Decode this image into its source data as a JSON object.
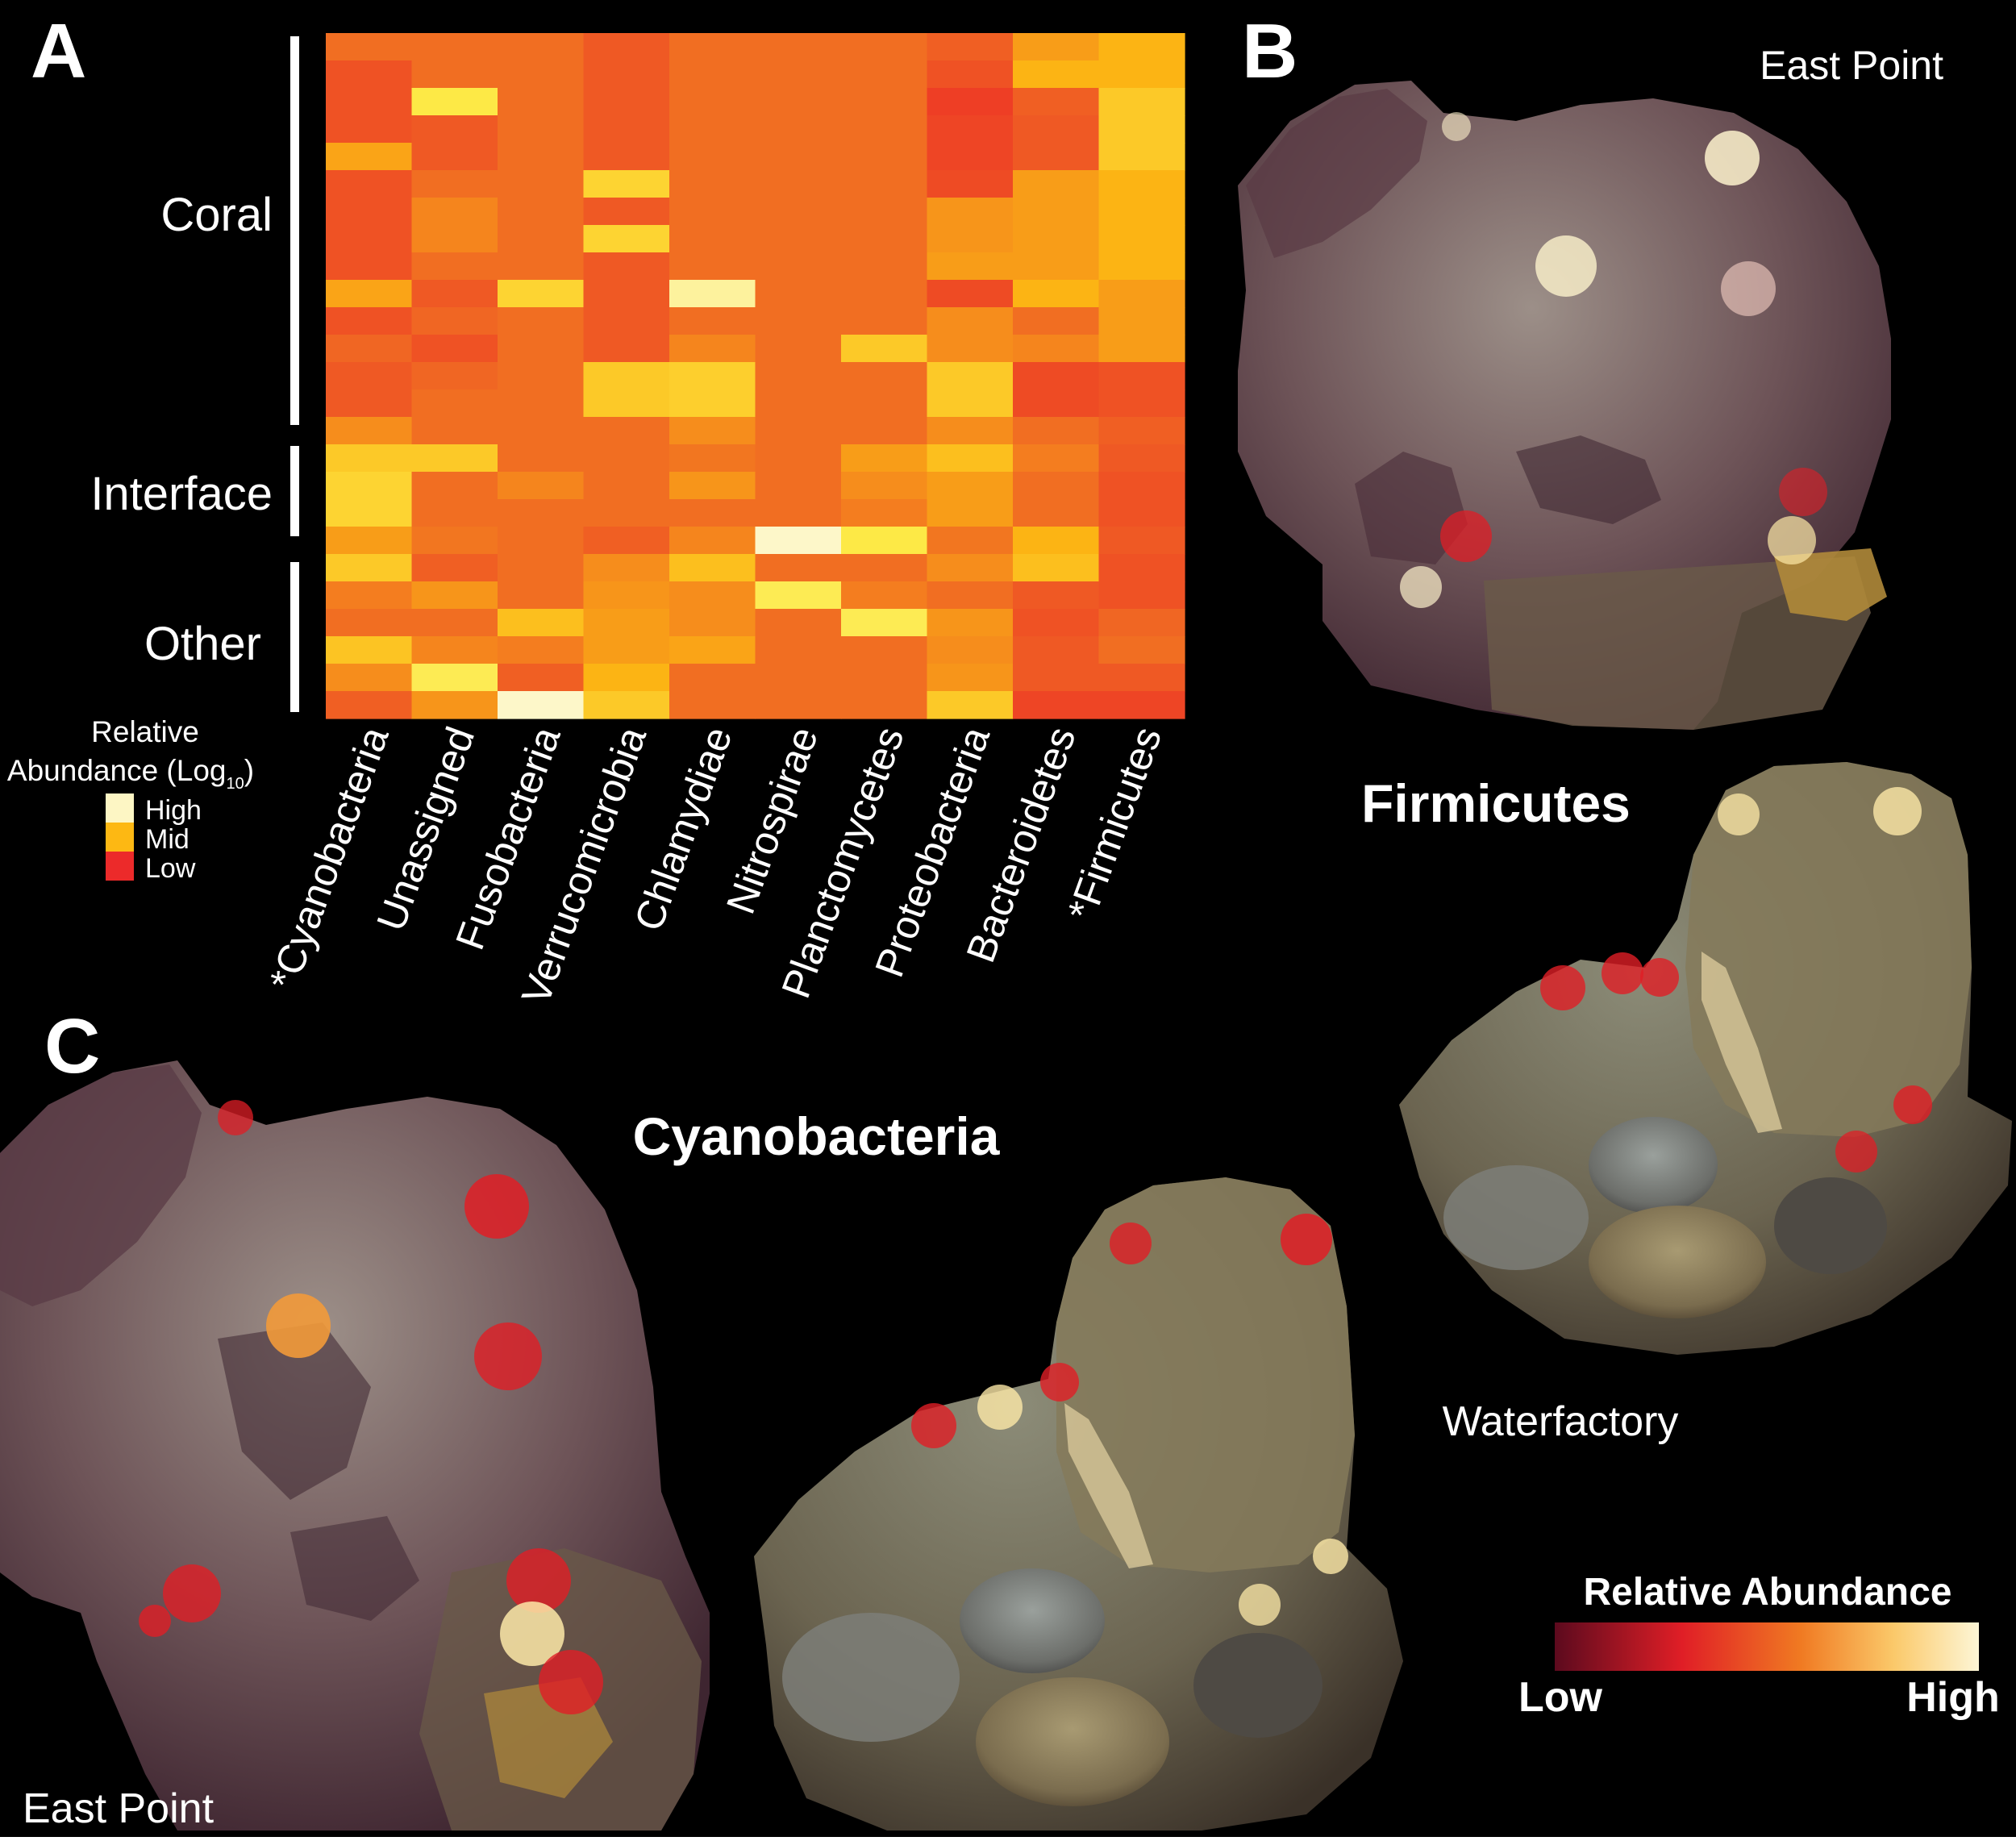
{
  "panel_letters": {
    "a": "A",
    "b": "B",
    "c": "C"
  },
  "heatmap": {
    "groups": [
      {
        "label": "Coral"
      },
      {
        "label": "Interface"
      },
      {
        "label": "Other"
      }
    ],
    "legend": {
      "title_line1": "Relative",
      "title_line2_prefix": "Abundance (Log",
      "title_subscript": "10",
      "title_suffix": ")",
      "items": [
        {
          "label": "High",
          "color": "#fdf6c4"
        },
        {
          "label": "Mid",
          "color": "#fdb813"
        },
        {
          "label": "Low",
          "color": "#ec2a2a"
        }
      ]
    }
  },
  "panel_b": {
    "site_label": "East Point",
    "taxon_title": "Firmicutes",
    "waterfactory_label": "Waterfactory"
  },
  "panel_c": {
    "taxon_title": "Cyanobacteria",
    "site_label": "East Point"
  },
  "gradient_legend": {
    "title": "Relative Abundance",
    "low": "Low",
    "high": "High",
    "colors": [
      "#5c0a1e",
      "#e01e26",
      "#f07a22",
      "#fbc96a",
      "#fdf6d6"
    ]
  },
  "chart_data": {
    "type": "heatmap",
    "x_categories": [
      "*Cyanobacteria",
      "Unassigned",
      "Fusobacteria",
      "Verrucomicrobia",
      "Chlamydiae",
      "Nitrospirae",
      "Planctomycetes",
      "Proteobacteria",
      "Bacteroidetes",
      "*Firmicutes"
    ],
    "row_groups": [
      {
        "name": "Coral",
        "rows": 15
      },
      {
        "name": "Interface",
        "rows": 3
      },
      {
        "name": "Other",
        "rows": 7
      }
    ],
    "value_scale": {
      "1": "Low",
      "2": "Mid",
      "3": "High"
    },
    "values": [
      [
        1.55,
        1.55,
        1.55,
        1.4,
        1.55,
        1.55,
        1.55,
        1.45,
        1.85,
        2.0
      ],
      [
        1.35,
        1.55,
        1.55,
        1.4,
        1.55,
        1.55,
        1.55,
        1.35,
        2.0,
        2.0
      ],
      [
        1.35,
        2.5,
        1.55,
        1.4,
        1.55,
        1.55,
        1.55,
        1.2,
        1.45,
        2.2
      ],
      [
        1.35,
        1.4,
        1.55,
        1.4,
        1.55,
        1.55,
        1.55,
        1.25,
        1.4,
        2.2
      ],
      [
        1.9,
        1.4,
        1.55,
        1.4,
        1.55,
        1.55,
        1.55,
        1.25,
        1.4,
        2.2
      ],
      [
        1.35,
        1.55,
        1.55,
        2.3,
        1.55,
        1.55,
        1.55,
        1.3,
        1.85,
        2.0
      ],
      [
        1.35,
        1.7,
        1.55,
        1.4,
        1.55,
        1.55,
        1.55,
        1.8,
        1.85,
        2.0
      ],
      [
        1.35,
        1.7,
        1.55,
        2.3,
        1.55,
        1.55,
        1.55,
        1.8,
        1.85,
        2.0
      ],
      [
        1.35,
        1.55,
        1.55,
        1.4,
        1.55,
        1.55,
        1.55,
        1.85,
        1.85,
        2.0
      ],
      [
        1.9,
        1.4,
        2.3,
        1.4,
        2.8,
        1.55,
        1.55,
        1.3,
        2.0,
        1.85
      ],
      [
        1.35,
        1.5,
        1.55,
        1.4,
        1.55,
        1.55,
        1.55,
        1.75,
        1.55,
        1.85
      ],
      [
        1.5,
        1.35,
        1.55,
        1.4,
        1.7,
        1.55,
        2.2,
        1.75,
        1.7,
        1.85
      ],
      [
        1.4,
        1.5,
        1.55,
        2.2,
        2.25,
        1.55,
        1.55,
        2.2,
        1.3,
        1.35
      ],
      [
        1.4,
        1.55,
        1.55,
        2.2,
        2.25,
        1.55,
        1.55,
        2.2,
        1.3,
        1.35
      ],
      [
        1.75,
        1.55,
        1.55,
        1.55,
        1.75,
        1.55,
        1.55,
        1.75,
        1.55,
        1.45
      ],
      [
        2.2,
        2.2,
        1.55,
        1.55,
        1.6,
        1.55,
        1.85,
        2.1,
        1.65,
        1.4
      ],
      [
        2.3,
        1.55,
        1.7,
        1.55,
        1.8,
        1.55,
        1.75,
        1.85,
        1.55,
        1.35
      ],
      [
        2.3,
        1.55,
        1.55,
        1.55,
        1.55,
        1.55,
        1.65,
        1.85,
        1.55,
        1.35
      ],
      [
        1.85,
        1.6,
        1.55,
        1.45,
        1.7,
        2.95,
        2.5,
        1.6,
        2.0,
        1.4
      ],
      [
        2.2,
        1.45,
        1.55,
        1.75,
        2.1,
        1.55,
        1.55,
        1.75,
        2.1,
        1.35
      ],
      [
        1.65,
        1.8,
        1.55,
        1.8,
        1.75,
        2.55,
        1.65,
        1.55,
        1.4,
        1.35
      ],
      [
        1.55,
        1.55,
        2.1,
        1.85,
        1.75,
        1.55,
        2.55,
        1.8,
        1.35,
        1.5
      ],
      [
        2.15,
        1.7,
        1.65,
        1.85,
        1.9,
        1.55,
        1.55,
        1.75,
        1.4,
        1.55
      ],
      [
        1.75,
        2.55,
        1.45,
        2.0,
        1.55,
        1.55,
        1.55,
        1.8,
        1.4,
        1.4
      ],
      [
        1.45,
        1.8,
        2.95,
        2.2,
        1.55,
        1.55,
        1.55,
        2.2,
        1.25,
        1.25
      ]
    ]
  }
}
